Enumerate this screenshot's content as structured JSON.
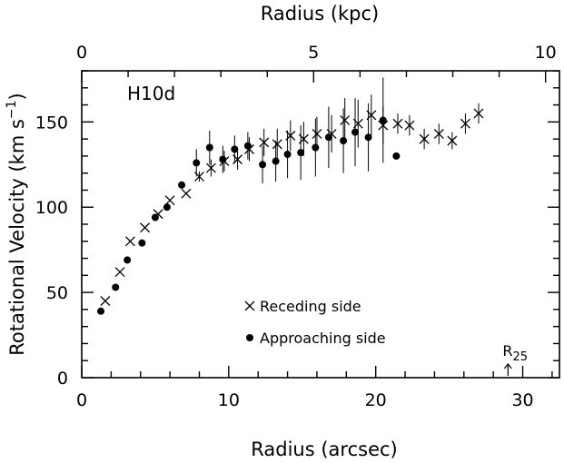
{
  "chart_data": {
    "type": "scatter",
    "panel_label": "H10d",
    "xlabel": "Radius (arcsec)",
    "ylabel_main": "Rotational Velocity (km s",
    "ylabel_exp": "−1",
    "ylabel_close": ")",
    "top_xlabel": "Radius (kpc)",
    "xlim": [
      0,
      32.5
    ],
    "ylim": [
      0,
      180
    ],
    "top_xlim_kpc": [
      0,
      10.3
    ],
    "x_ticks": [
      "0",
      "10",
      "20",
      "30"
    ],
    "y_ticks": [
      "0",
      "50",
      "100",
      "150"
    ],
    "top_ticks": [
      "0",
      "5",
      "10"
    ],
    "annotation": {
      "text": "R",
      "subscript": "25",
      "x": 29.0
    },
    "legend": [
      {
        "name": "Receding side",
        "marker": "x"
      },
      {
        "name": "Approaching side",
        "marker": "dot"
      }
    ],
    "series": [
      {
        "name": "Receding side",
        "marker": "x",
        "points": [
          {
            "x": 1.6,
            "y": 45,
            "err": 0
          },
          {
            "x": 2.6,
            "y": 62,
            "err": 0
          },
          {
            "x": 3.3,
            "y": 80,
            "err": 0
          },
          {
            "x": 4.3,
            "y": 88,
            "err": 0
          },
          {
            "x": 5.2,
            "y": 96,
            "err": 0
          },
          {
            "x": 6.0,
            "y": 104,
            "err": 0
          },
          {
            "x": 7.1,
            "y": 108,
            "err": 0
          },
          {
            "x": 8.0,
            "y": 118,
            "err": 3
          },
          {
            "x": 8.8,
            "y": 123,
            "err": 5
          },
          {
            "x": 9.7,
            "y": 127,
            "err": 6
          },
          {
            "x": 10.6,
            "y": 128,
            "err": 6
          },
          {
            "x": 11.4,
            "y": 134,
            "err": 7
          },
          {
            "x": 12.4,
            "y": 138,
            "err": 8
          },
          {
            "x": 13.3,
            "y": 137,
            "err": 9
          },
          {
            "x": 14.2,
            "y": 142,
            "err": 9
          },
          {
            "x": 15.1,
            "y": 140,
            "err": 10
          },
          {
            "x": 16.0,
            "y": 143,
            "err": 10
          },
          {
            "x": 17.0,
            "y": 143,
            "err": 11
          },
          {
            "x": 17.9,
            "y": 151,
            "err": 13
          },
          {
            "x": 18.8,
            "y": 149,
            "err": 14
          },
          {
            "x": 19.7,
            "y": 154,
            "err": 12
          },
          {
            "x": 20.5,
            "y": 148,
            "err": 11
          },
          {
            "x": 21.5,
            "y": 149,
            "err": 6
          },
          {
            "x": 22.3,
            "y": 148,
            "err": 6
          },
          {
            "x": 23.3,
            "y": 140,
            "err": 6
          },
          {
            "x": 24.3,
            "y": 143,
            "err": 6
          },
          {
            "x": 25.2,
            "y": 139,
            "err": 5
          },
          {
            "x": 26.1,
            "y": 149,
            "err": 6
          },
          {
            "x": 27.0,
            "y": 155,
            "err": 6
          }
        ]
      },
      {
        "name": "Approaching side",
        "marker": "dot",
        "points": [
          {
            "x": 1.3,
            "y": 39,
            "err": 0
          },
          {
            "x": 2.3,
            "y": 53,
            "err": 0
          },
          {
            "x": 3.1,
            "y": 69,
            "err": 0
          },
          {
            "x": 4.1,
            "y": 79,
            "err": 0
          },
          {
            "x": 5.0,
            "y": 94,
            "err": 0
          },
          {
            "x": 5.8,
            "y": 100,
            "err": 0
          },
          {
            "x": 6.8,
            "y": 113,
            "err": 0
          },
          {
            "x": 7.8,
            "y": 126,
            "err": 8
          },
          {
            "x": 8.7,
            "y": 135,
            "err": 10
          },
          {
            "x": 9.6,
            "y": 128,
            "err": 8
          },
          {
            "x": 10.4,
            "y": 134,
            "err": 8
          },
          {
            "x": 11.3,
            "y": 136,
            "err": 8
          },
          {
            "x": 12.3,
            "y": 125,
            "err": 11
          },
          {
            "x": 13.2,
            "y": 127,
            "err": 12
          },
          {
            "x": 14.0,
            "y": 131,
            "err": 14
          },
          {
            "x": 14.9,
            "y": 132,
            "err": 16
          },
          {
            "x": 15.9,
            "y": 135,
            "err": 17
          },
          {
            "x": 16.8,
            "y": 141,
            "err": 18
          },
          {
            "x": 17.8,
            "y": 139,
            "err": 19
          },
          {
            "x": 18.6,
            "y": 144,
            "err": 20
          },
          {
            "x": 19.5,
            "y": 141,
            "err": 20
          },
          {
            "x": 20.5,
            "y": 151,
            "err": 25
          },
          {
            "x": 21.4,
            "y": 130,
            "err": 0
          }
        ]
      }
    ]
  }
}
